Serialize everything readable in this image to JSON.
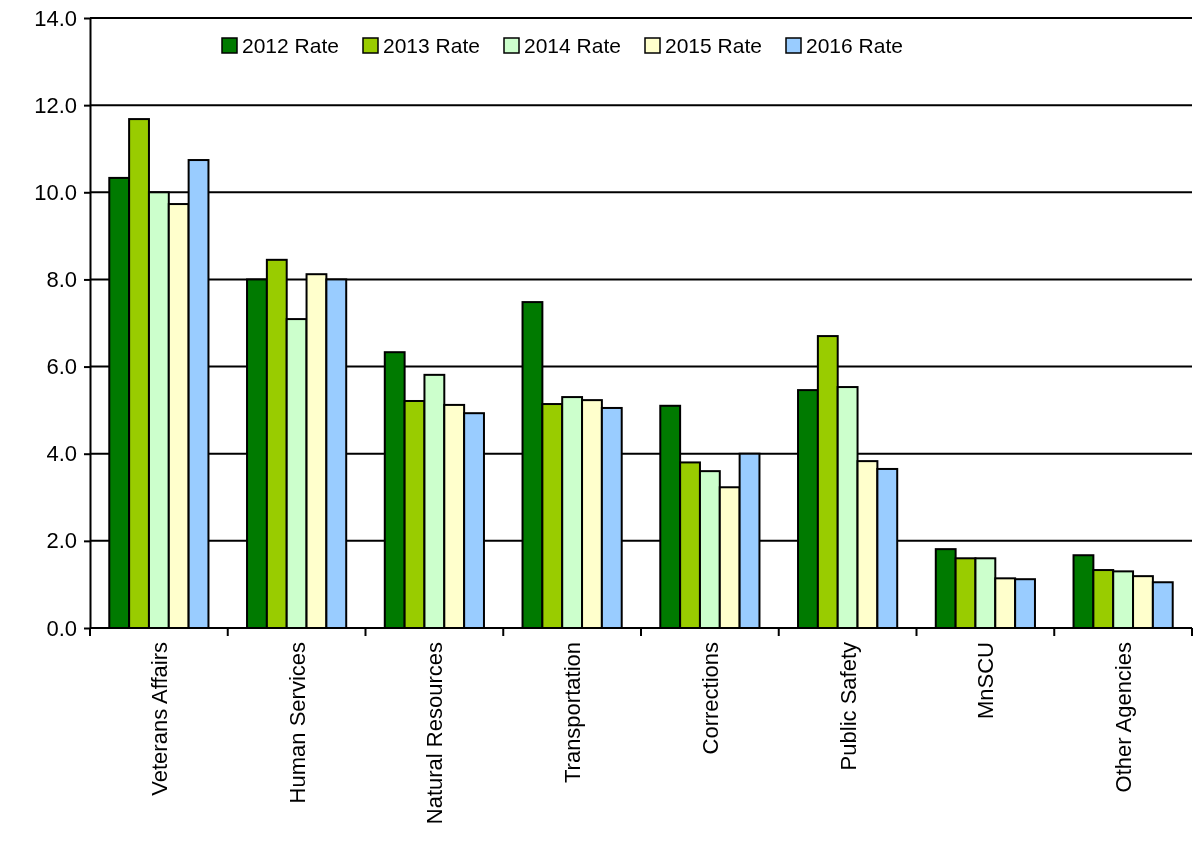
{
  "chart_data": {
    "type": "bar",
    "categories": [
      "Veterans Affairs",
      "Human Services",
      "Natural Resources",
      "Transportation",
      "Corrections",
      "Public Safety",
      "MnSCU",
      "Other Agencies"
    ],
    "series": [
      {
        "name": "2012 Rate",
        "color": "#007a00",
        "values": [
          10.33,
          8.0,
          6.33,
          7.48,
          5.1,
          5.46,
          1.81,
          1.67
        ]
      },
      {
        "name": "2013 Rate",
        "color": "#99cc00",
        "values": [
          11.68,
          8.45,
          5.21,
          5.14,
          3.8,
          6.7,
          1.6,
          1.33
        ]
      },
      {
        "name": "2014 Rate",
        "color": "#ccffcc",
        "values": [
          10.0,
          7.09,
          5.81,
          5.3,
          3.6,
          5.53,
          1.6,
          1.3
        ]
      },
      {
        "name": "2015 Rate",
        "color": "#ffffcc",
        "values": [
          9.73,
          8.12,
          5.12,
          5.23,
          3.23,
          3.83,
          1.14,
          1.19
        ]
      },
      {
        "name": "2016 Rate",
        "color": "#99ccff",
        "values": [
          10.74,
          8.0,
          4.93,
          5.05,
          4.0,
          3.65,
          1.12,
          1.05
        ]
      }
    ],
    "ylim": [
      0,
      14
    ],
    "yticks": [
      {
        "value": 0,
        "label": "0.0"
      },
      {
        "value": 2,
        "label": "2.0"
      },
      {
        "value": 4,
        "label": "4.0"
      },
      {
        "value": 6,
        "label": "6.0"
      },
      {
        "value": 8,
        "label": "8.0"
      },
      {
        "value": 10,
        "label": "10.0"
      },
      {
        "value": 12,
        "label": "12.0"
      },
      {
        "value": 14,
        "label": "14.0"
      }
    ],
    "grid": "y",
    "legend": "top"
  }
}
